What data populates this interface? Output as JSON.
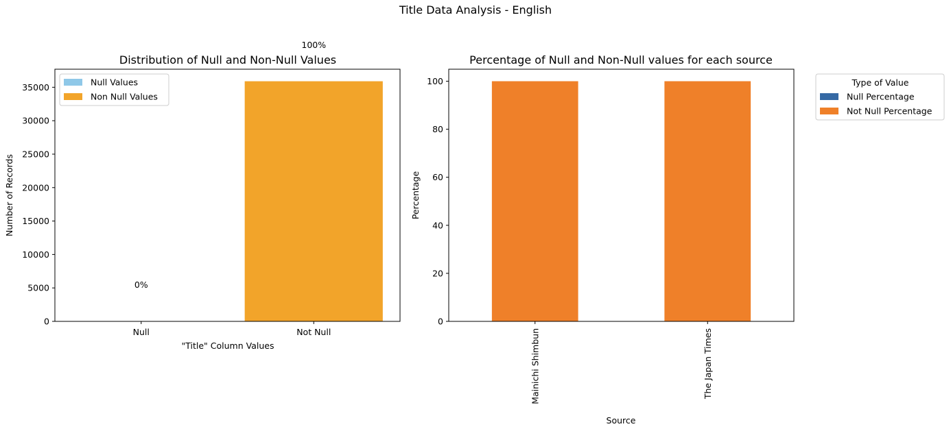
{
  "figure": {
    "suptitle": "Title Data Analysis - English"
  },
  "chart_data": [
    {
      "type": "bar",
      "title": "Distribution of Null and Non-Null Values",
      "xlabel": "\"Title\" Column Values",
      "ylabel": "Number of Records",
      "categories": [
        "Null",
        "Not Null"
      ],
      "values": [
        0,
        35900
      ],
      "colors": [
        "#8fc8e8",
        "#f2a42a"
      ],
      "bar_labels": [
        "0%",
        "100%"
      ],
      "ylim": [
        0,
        37700
      ],
      "yticks": [
        0,
        5000,
        10000,
        15000,
        20000,
        25000,
        30000,
        35000
      ],
      "legend": {
        "placement": "top-left",
        "entries": [
          {
            "label": "Null Values",
            "color": "#8fc8e8"
          },
          {
            "label": "Non Null Values",
            "color": "#f2a42a"
          }
        ]
      }
    },
    {
      "type": "bar",
      "stacked": true,
      "title": "Percentage of Null and Non-Null values for each source",
      "xlabel": "Source",
      "ylabel": "Percentage",
      "categories": [
        "Mainichi Shimbun",
        "The Japan Times"
      ],
      "series": [
        {
          "name": "Null Percentage",
          "values": [
            0,
            0
          ],
          "color": "#3569a4"
        },
        {
          "name": "Not Null Percentage",
          "values": [
            100,
            100
          ],
          "color": "#ef8029"
        }
      ],
      "ylim": [
        0,
        105
      ],
      "yticks": [
        0,
        20,
        40,
        60,
        80,
        100
      ],
      "legend": {
        "title": "Type of Value",
        "placement": "outside-right"
      }
    }
  ]
}
